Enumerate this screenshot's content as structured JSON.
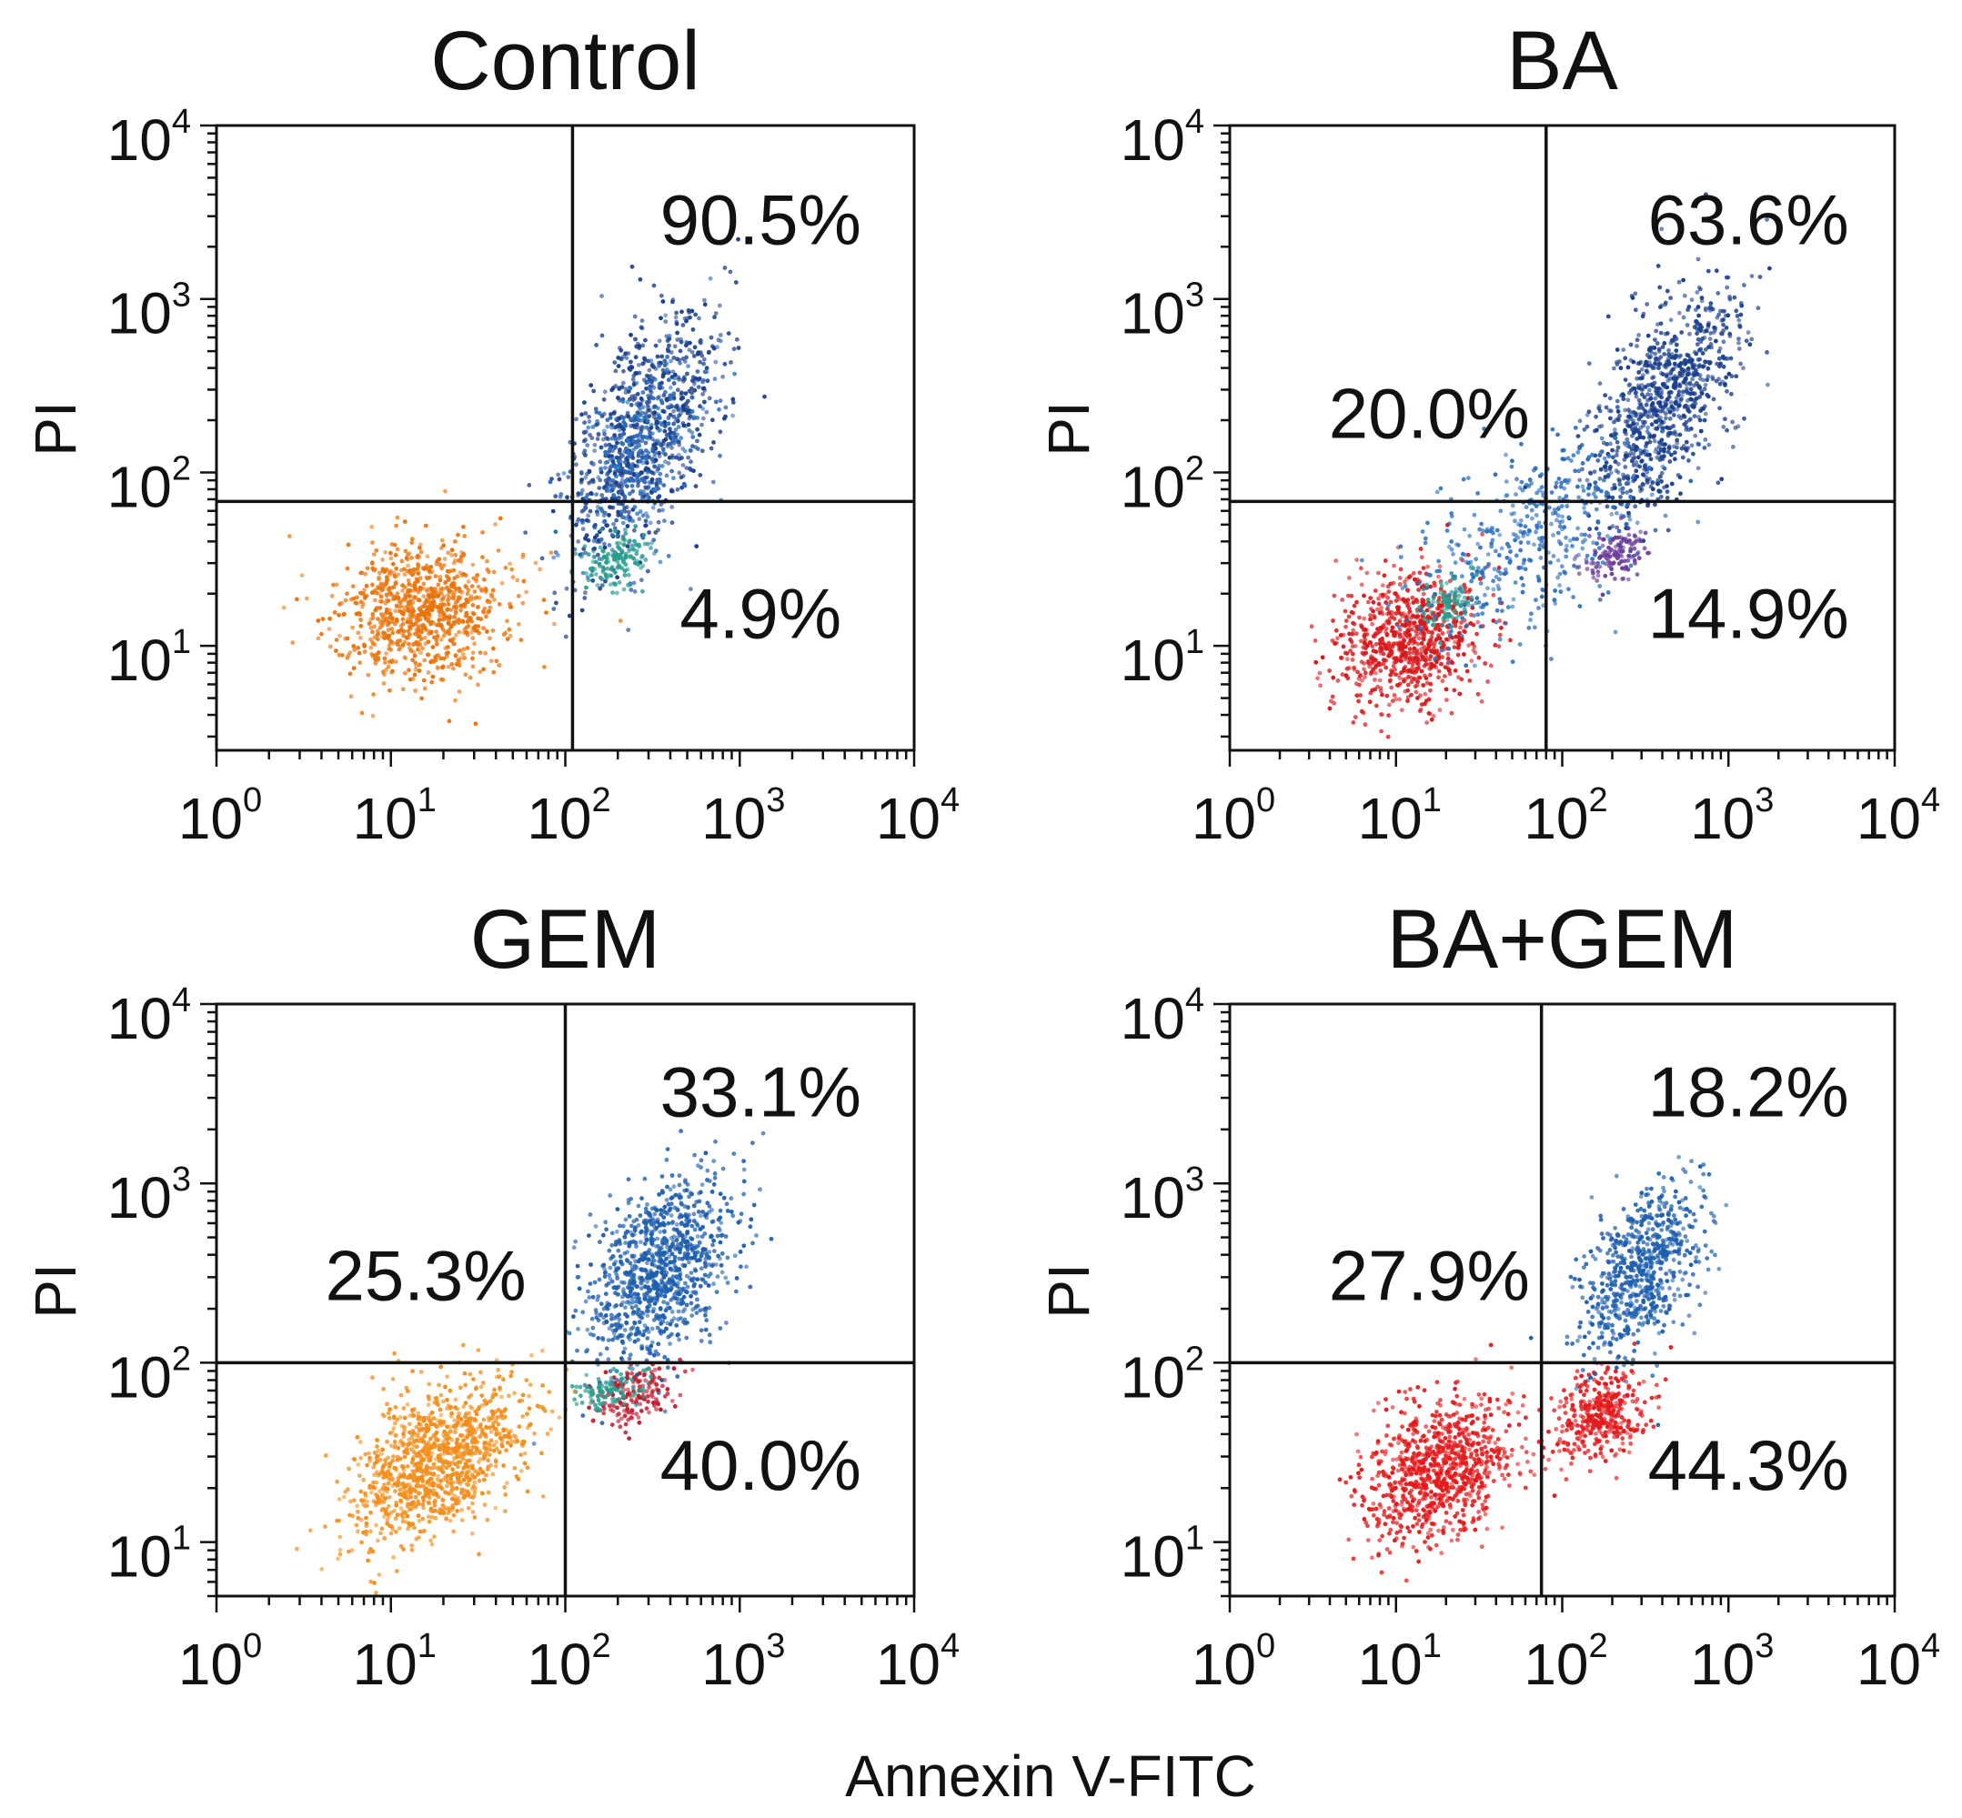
{
  "chart_data": [
    {
      "type": "scatter",
      "title": "Control",
      "xlabel": "Annexin V-FITC",
      "ylabel": "PI",
      "xscale": "log",
      "yscale": "log",
      "xlim": [
        1,
        10000
      ],
      "ylim": [
        2.5,
        10000
      ],
      "xticks": [
        {
          "base": "10",
          "exp": "0"
        },
        {
          "base": "10",
          "exp": "1"
        },
        {
          "base": "10",
          "exp": "2"
        },
        {
          "base": "10",
          "exp": "3"
        },
        {
          "base": "10",
          "exp": "4"
        }
      ],
      "yticks": [
        {
          "base": "10",
          "exp": "1"
        },
        {
          "base": "10",
          "exp": "2"
        },
        {
          "base": "10",
          "exp": "3"
        },
        {
          "base": "10",
          "exp": "4"
        }
      ],
      "quadrant_gate": {
        "x": 110,
        "y": 68
      },
      "quadrant_labels": [
        {
          "quadrant": "upper-right",
          "text": "90.5%"
        },
        {
          "quadrant": "lower-right",
          "text": "4.9%"
        }
      ],
      "populations": [
        {
          "color": "#e8740c",
          "center": [
            15,
            16
          ],
          "spread": [
            0.24,
            0.2
          ],
          "count": 900,
          "corr": 0.15
        },
        {
          "color": "#1a3f8c",
          "center": [
            280,
            160
          ],
          "spread": [
            0.22,
            0.38
          ],
          "count": 850,
          "corr": 0.55
        },
        {
          "color": "#2b6fbf",
          "center": [
            250,
            120
          ],
          "spread": [
            0.2,
            0.32
          ],
          "count": 300,
          "corr": 0.5
        },
        {
          "color": "#2a9d8f",
          "center": [
            200,
            32
          ],
          "spread": [
            0.1,
            0.08
          ],
          "count": 140,
          "corr": 0.3
        }
      ]
    },
    {
      "type": "scatter",
      "title": "BA",
      "xlabel": "Annexin V-FITC",
      "ylabel": "PI",
      "xscale": "log",
      "yscale": "log",
      "xlim": [
        1,
        10000
      ],
      "ylim": [
        2.5,
        10000
      ],
      "xticks": [
        {
          "base": "10",
          "exp": "0"
        },
        {
          "base": "10",
          "exp": "1"
        },
        {
          "base": "10",
          "exp": "2"
        },
        {
          "base": "10",
          "exp": "3"
        },
        {
          "base": "10",
          "exp": "4"
        }
      ],
      "yticks": [
        {
          "base": "10",
          "exp": "1"
        },
        {
          "base": "10",
          "exp": "2"
        },
        {
          "base": "10",
          "exp": "3"
        },
        {
          "base": "10",
          "exp": "4"
        }
      ],
      "quadrant_gate": {
        "x": 80,
        "y": 68
      },
      "quadrant_labels": [
        {
          "quadrant": "upper-left",
          "text": "20.0%"
        },
        {
          "quadrant": "upper-right",
          "text": "63.6%"
        },
        {
          "quadrant": "lower-right",
          "text": "14.9%"
        }
      ],
      "populations": [
        {
          "color": "#d7191c",
          "center": [
            12,
            11
          ],
          "spread": [
            0.22,
            0.2
          ],
          "count": 800,
          "corr": 0.2
        },
        {
          "color": "#1a3f8c",
          "center": [
            400,
            250
          ],
          "spread": [
            0.22,
            0.33
          ],
          "count": 900,
          "corr": 0.55
        },
        {
          "color": "#2b6fbf",
          "center": [
            60,
            40
          ],
          "spread": [
            0.35,
            0.3
          ],
          "count": 450,
          "corr": 0.5
        },
        {
          "color": "#6a3d9a",
          "center": [
            220,
            35
          ],
          "spread": [
            0.1,
            0.08
          ],
          "count": 120,
          "corr": 0.3
        },
        {
          "color": "#2a9d8f",
          "center": [
            20,
            18
          ],
          "spread": [
            0.08,
            0.08
          ],
          "count": 90,
          "corr": 0.3
        }
      ]
    },
    {
      "type": "scatter",
      "title": "GEM",
      "xlabel": "Annexin V-FITC",
      "ylabel": "PI",
      "xscale": "log",
      "yscale": "log",
      "xlim": [
        1,
        10000
      ],
      "ylim": [
        5,
        10000
      ],
      "xticks": [
        {
          "base": "10",
          "exp": "0"
        },
        {
          "base": "10",
          "exp": "1"
        },
        {
          "base": "10",
          "exp": "2"
        },
        {
          "base": "10",
          "exp": "3"
        },
        {
          "base": "10",
          "exp": "4"
        }
      ],
      "yticks": [
        {
          "base": "10",
          "exp": "1"
        },
        {
          "base": "10",
          "exp": "2"
        },
        {
          "base": "10",
          "exp": "3"
        },
        {
          "base": "10",
          "exp": "4"
        }
      ],
      "quadrant_gate": {
        "x": 100,
        "y": 100
      },
      "quadrant_labels": [
        {
          "quadrant": "upper-left",
          "text": "25.3%"
        },
        {
          "quadrant": "upper-right",
          "text": "33.1%"
        },
        {
          "quadrant": "lower-right",
          "text": "40.0%"
        }
      ],
      "populations": [
        {
          "color": "#f28e1c",
          "center": [
            18,
            28
          ],
          "spread": [
            0.25,
            0.22
          ],
          "count": 1100,
          "corr": 0.45
        },
        {
          "color": "#1f5fae",
          "center": [
            350,
            320
          ],
          "spread": [
            0.2,
            0.26
          ],
          "count": 1000,
          "corr": 0.45
        },
        {
          "color": "#c0182b",
          "center": [
            250,
            65
          ],
          "spread": [
            0.12,
            0.08
          ],
          "count": 160,
          "corr": 0.3
        },
        {
          "color": "#2a9d8f",
          "center": [
            180,
            70
          ],
          "spread": [
            0.1,
            0.06
          ],
          "count": 90,
          "corr": 0.3
        }
      ]
    },
    {
      "type": "scatter",
      "title": "BA+GEM",
      "xlabel": "Annexin V-FITC",
      "ylabel": "PI",
      "xscale": "log",
      "yscale": "log",
      "xlim": [
        1,
        10000
      ],
      "ylim": [
        5,
        10000
      ],
      "xticks": [
        {
          "base": "10",
          "exp": "0"
        },
        {
          "base": "10",
          "exp": "1"
        },
        {
          "base": "10",
          "exp": "2"
        },
        {
          "base": "10",
          "exp": "3"
        },
        {
          "base": "10",
          "exp": "4"
        }
      ],
      "yticks": [
        {
          "base": "10",
          "exp": "1"
        },
        {
          "base": "10",
          "exp": "2"
        },
        {
          "base": "10",
          "exp": "3"
        },
        {
          "base": "10",
          "exp": "4"
        }
      ],
      "quadrant_gate": {
        "x": 75,
        "y": 100
      },
      "quadrant_labels": [
        {
          "quadrant": "upper-left",
          "text": "27.9%"
        },
        {
          "quadrant": "upper-right",
          "text": "18.2%"
        },
        {
          "quadrant": "lower-right",
          "text": "44.3%"
        }
      ],
      "populations": [
        {
          "color": "#e31a1c",
          "center": [
            18,
            25
          ],
          "spread": [
            0.22,
            0.2
          ],
          "count": 900,
          "corr": 0.3
        },
        {
          "color": "#e31a1c",
          "center": [
            170,
            50
          ],
          "spread": [
            0.15,
            0.12
          ],
          "count": 380,
          "corr": 0.2
        },
        {
          "color": "#1f5fae",
          "center": [
            300,
            330
          ],
          "spread": [
            0.18,
            0.23
          ],
          "count": 700,
          "corr": 0.5
        }
      ]
    }
  ],
  "shared_xlabel": "Annexin V-FITC"
}
